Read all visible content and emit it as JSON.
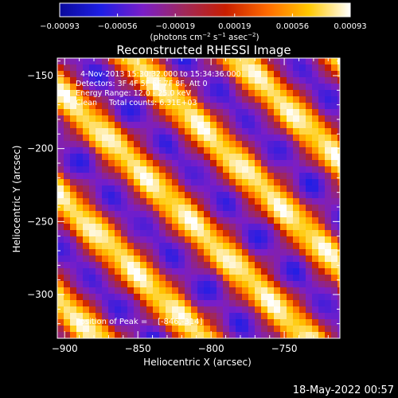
{
  "chart_data": {
    "type": "heatmap",
    "title": "Reconstructed RHESSI Image",
    "xlabel": "Heliocentric X (arcsec)",
    "ylabel": "Heliocentric Y (arcsec)",
    "xlim": [
      -905,
      -712
    ],
    "ylim": [
      -330,
      -138
    ],
    "x_ticks": [
      -900,
      -850,
      -800,
      -750
    ],
    "x_tick_labels": [
      "−900",
      "−850",
      "−800",
      "−750"
    ],
    "y_ticks": [
      -150,
      -200,
      -250,
      -300
    ],
    "y_tick_labels": [
      "−150",
      "−200",
      "−250",
      "−300"
    ],
    "colorbar": {
      "range": [
        -0.00093,
        0.00093
      ],
      "ticks": [
        -0.00093,
        -0.00056,
        -0.00019,
        0.00019,
        0.00056,
        0.00093
      ],
      "tick_labels": [
        "−0.00093",
        "−0.00056",
        "−0.00019",
        "0.00019",
        "0.00056",
        "0.00093"
      ],
      "unit_parts": [
        "(photons cm",
        "−2",
        " s",
        "−1",
        " asec",
        "−2",
        ")"
      ],
      "colors": [
        "#0a0a9a",
        "#1e1ee6",
        "#7a1ec8",
        "#a0285a",
        "#c81e00",
        "#ff6a00",
        "#ffc800",
        "#ffffff"
      ]
    },
    "stripe_model": {
      "pattern": "diagonal fringes from upper-left to lower-right",
      "fringe_spacing_arcsec": 72,
      "bright_ridges_x_plus_y": [
        -1136,
        -1064,
        -992
      ]
    },
    "annotations": [
      "  4-Nov-2013 15:30:32.000 to 15:34:36.000",
      "Detectors: 3F 4F 5F 6F 7F 8F, Att 0",
      "Energy Range: 12.0 - 25.0 keV",
      "Clean     Total counts: 6.31E+03"
    ],
    "position_label": "Position of Peak = ",
    "position_value": "[-846,-314]",
    "footer_date": "18-May-2022 00:57"
  }
}
